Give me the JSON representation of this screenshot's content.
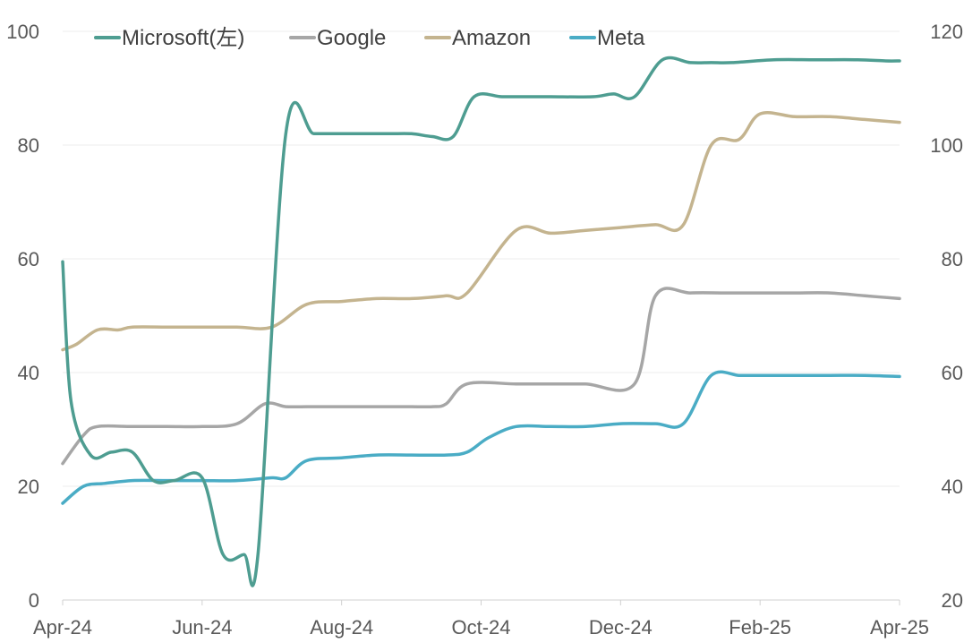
{
  "chart_data": {
    "type": "line",
    "legend_position": "top",
    "grid": true,
    "x_ticks": [
      "Apr-24",
      "Jun-24",
      "Aug-24",
      "Oct-24",
      "Dec-24",
      "Feb-25",
      "Apr-25"
    ],
    "y_left": {
      "range": [
        0,
        100
      ],
      "ticks": [
        "0",
        "20",
        "40",
        "60",
        "80",
        "100"
      ]
    },
    "y_right": {
      "range": [
        20,
        120
      ],
      "ticks": [
        "20",
        "40",
        "60",
        "80",
        "100",
        "120"
      ]
    },
    "series": [
      {
        "name": "Microsoft(左)",
        "axis": "left",
        "color": "#4e9d91",
        "x": [
          0,
          0.12,
          0.4,
          0.7,
          1.0,
          1.3,
          1.6,
          2.0,
          2.3,
          2.6,
          2.8,
          3.2,
          3.6,
          4.0,
          4.4,
          4.7,
          5.0,
          5.3,
          5.6,
          5.9,
          6.3,
          6.7,
          7.0,
          7.6,
          7.9,
          8.2,
          8.6,
          9.0,
          9.3,
          9.6,
          10.2,
          10.8,
          11.4,
          11.8,
          12.0
        ],
        "y": [
          59.5,
          35,
          25.5,
          26,
          26,
          21,
          21,
          21.5,
          8,
          8,
          8,
          82,
          82,
          82,
          82,
          82,
          82,
          81.5,
          81.5,
          88.5,
          88.5,
          88.5,
          88.5,
          88.5,
          89,
          88.5,
          95,
          94.5,
          94.5,
          94.5,
          95,
          95,
          95,
          94.8,
          94.8
        ]
      },
      {
        "name": "Google",
        "axis": "right",
        "color": "#a6a6a6",
        "x": [
          0,
          0.3,
          0.5,
          1.0,
          1.5,
          2.0,
          2.5,
          2.9,
          3.2,
          3.5,
          4.0,
          4.5,
          5.0,
          5.3,
          5.5,
          5.8,
          6.5,
          7.0,
          7.5,
          8.2,
          8.5,
          9.0,
          9.5,
          10.0,
          10.5,
          11.0,
          11.5,
          12.0
        ],
        "y": [
          44,
          49,
          50.5,
          50.5,
          50.5,
          50.5,
          51,
          54.5,
          54,
          54,
          54,
          54,
          54,
          54,
          54.5,
          58,
          58,
          58,
          58,
          58,
          73.5,
          74,
          74,
          74,
          74,
          74,
          73.5,
          73
        ]
      },
      {
        "name": "Amazon",
        "axis": "right",
        "color": "#c4b48f",
        "x": [
          0,
          0.2,
          0.5,
          0.8,
          1.0,
          1.5,
          2.0,
          2.5,
          3.0,
          3.5,
          4.0,
          4.5,
          5.0,
          5.5,
          5.8,
          6.5,
          7.0,
          7.5,
          8.0,
          8.5,
          8.9,
          9.3,
          9.7,
          10.0,
          10.5,
          11.0,
          11.5,
          12.0
        ],
        "y": [
          64,
          65,
          67.5,
          67.5,
          68,
          68,
          68,
          68,
          68,
          72,
          72.5,
          73,
          73,
          73.5,
          74,
          85,
          84.5,
          85,
          85.5,
          86,
          86,
          100,
          101,
          105.5,
          105,
          105,
          104.5,
          104
        ]
      },
      {
        "name": "Meta",
        "axis": "right",
        "color": "#4aacc5",
        "x": [
          0,
          0.3,
          0.6,
          1.0,
          1.5,
          2.0,
          2.5,
          3.0,
          3.2,
          3.5,
          4.0,
          4.5,
          5.0,
          5.5,
          5.8,
          6.1,
          6.5,
          7.0,
          7.5,
          8.0,
          8.5,
          8.9,
          9.3,
          9.7,
          10.0,
          10.5,
          11.0,
          11.5,
          12.0
        ],
        "y": [
          37,
          40,
          40.5,
          41,
          41,
          41,
          41,
          41.5,
          41.5,
          44.5,
          45,
          45.5,
          45.5,
          45.5,
          46,
          48.5,
          50.5,
          50.5,
          50.5,
          51,
          51,
          51,
          59.5,
          59.5,
          59.5,
          59.5,
          59.5,
          59.5,
          59.3
        ]
      }
    ]
  }
}
